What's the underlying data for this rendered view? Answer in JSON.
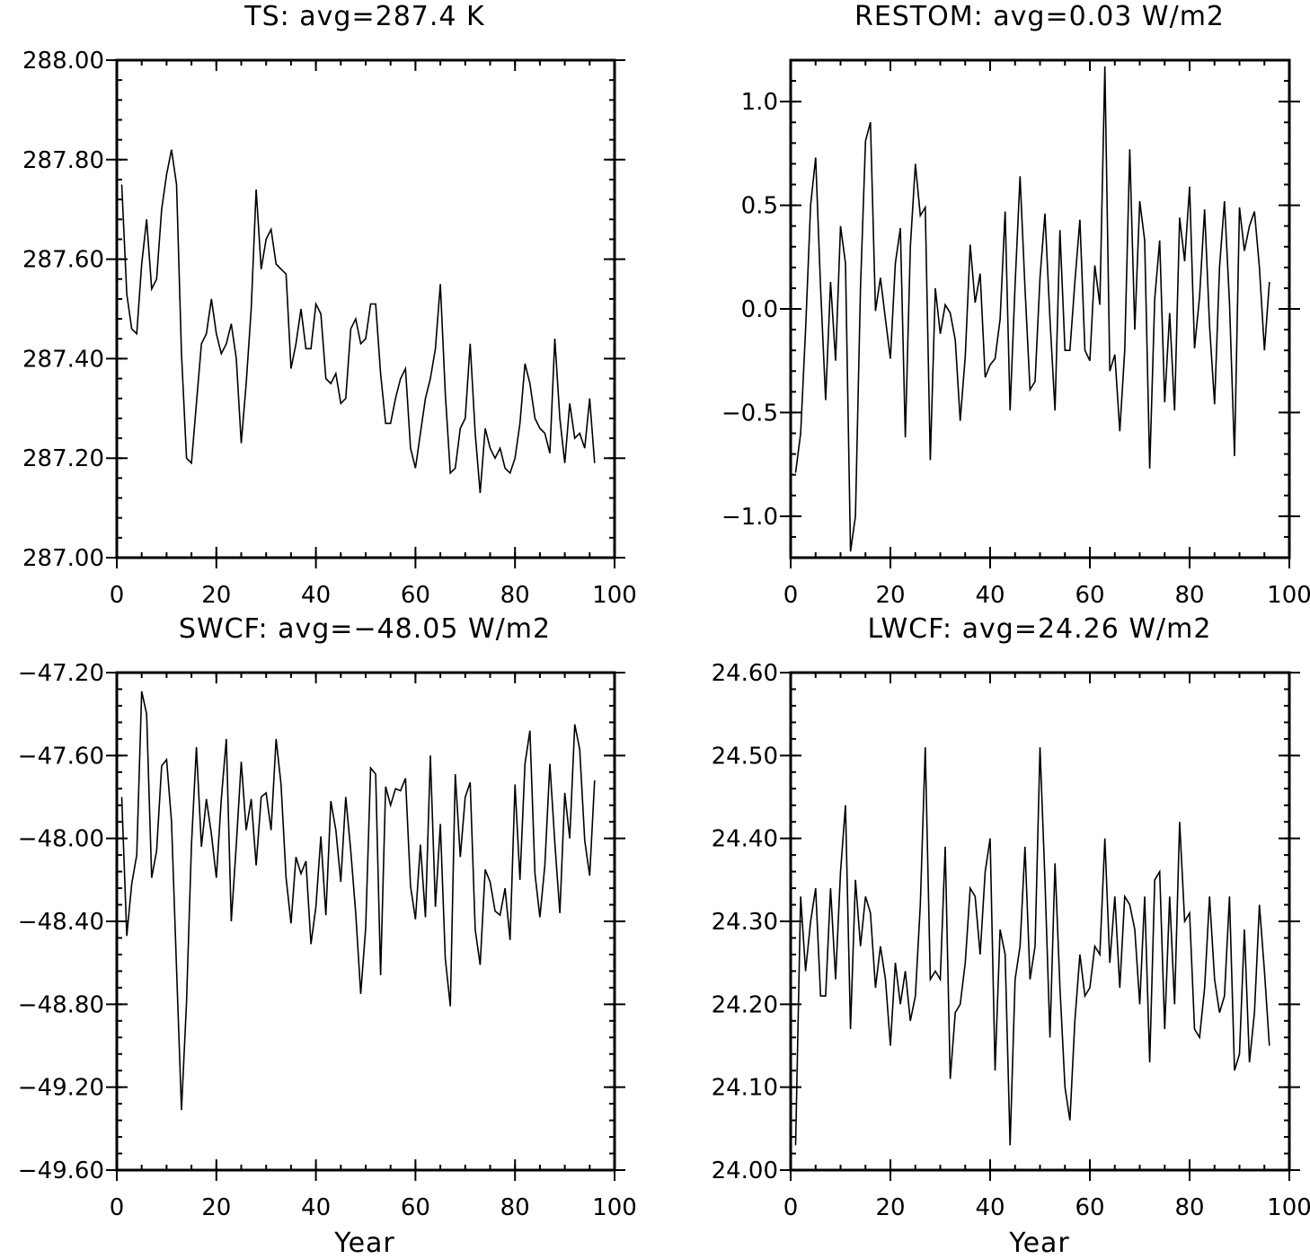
{
  "chart_data": [
    {
      "type": "line",
      "title": "TS: avg=287.4 K",
      "xlabel": "",
      "ylabel": "",
      "xlim": [
        0,
        100
      ],
      "ylim": [
        287.0,
        288.0
      ],
      "xticks": [
        0,
        20,
        40,
        60,
        80,
        100
      ],
      "xtick_labels": [
        "0",
        "20",
        "40",
        "60",
        "80",
        "100"
      ],
      "yticks": [
        287.0,
        287.2,
        287.4,
        287.6,
        287.8,
        288.0
      ],
      "ytick_labels": [
        "287.00",
        "287.20",
        "287.40",
        "287.60",
        "287.80",
        "288.00"
      ],
      "series": [
        {
          "x": [
            1,
            2,
            3,
            4,
            5,
            6,
            7,
            8,
            9,
            10,
            11,
            12,
            13,
            14,
            15,
            16,
            17,
            18,
            19,
            20,
            21,
            22,
            23,
            24,
            25,
            26,
            27,
            28,
            29,
            30,
            31,
            32,
            33,
            34,
            35,
            36,
            37,
            38,
            39,
            40,
            41,
            42,
            43,
            44,
            45,
            46,
            47,
            48,
            49,
            50,
            51,
            52,
            53,
            54,
            55,
            56,
            57,
            58,
            59,
            60,
            61,
            62,
            63,
            64,
            65,
            66,
            67,
            68,
            69,
            70,
            71,
            72,
            73,
            74,
            75,
            76,
            77,
            78,
            79,
            80,
            81,
            82,
            83,
            84,
            85,
            86,
            87,
            88,
            89,
            90,
            91,
            92,
            93,
            94,
            95,
            96
          ],
          "values": [
            287.75,
            287.53,
            287.46,
            287.45,
            287.59,
            287.68,
            287.54,
            287.56,
            287.7,
            287.77,
            287.82,
            287.75,
            287.41,
            287.2,
            287.19,
            287.31,
            287.43,
            287.45,
            287.52,
            287.45,
            287.41,
            287.43,
            287.47,
            287.4,
            287.23,
            287.35,
            287.5,
            287.74,
            287.58,
            287.64,
            287.66,
            287.59,
            287.58,
            287.57,
            287.38,
            287.43,
            287.5,
            287.42,
            287.42,
            287.51,
            287.49,
            287.36,
            287.35,
            287.37,
            287.31,
            287.32,
            287.46,
            287.48,
            287.43,
            287.44,
            287.51,
            287.51,
            287.37,
            287.27,
            287.27,
            287.32,
            287.36,
            287.38,
            287.22,
            287.18,
            287.25,
            287.32,
            287.36,
            287.42,
            287.55,
            287.33,
            287.17,
            287.18,
            287.26,
            287.28,
            287.43,
            287.25,
            287.13,
            287.26,
            287.22,
            287.2,
            287.22,
            287.18,
            287.17,
            287.2,
            287.27,
            287.39,
            287.35,
            287.28,
            287.26,
            287.25,
            287.21,
            287.44,
            287.28,
            287.19,
            287.31,
            287.24,
            287.25,
            287.22,
            287.32,
            287.19
          ]
        }
      ]
    },
    {
      "type": "line",
      "title": "RESTOM: avg=0.03 W/m2",
      "xlabel": "",
      "ylabel": "",
      "xlim": [
        0,
        100
      ],
      "ylim": [
        -1.2,
        1.2
      ],
      "xticks": [
        0,
        20,
        40,
        60,
        80,
        100
      ],
      "xtick_labels": [
        "0",
        "20",
        "40",
        "60",
        "80",
        "100"
      ],
      "yticks": [
        -1.0,
        -0.5,
        0.0,
        0.5,
        1.0
      ],
      "ytick_labels": [
        "−1.0",
        "−0.5",
        "0.0",
        "0.5",
        "1.0"
      ],
      "series": [
        {
          "x": [
            1,
            2,
            3,
            4,
            5,
            6,
            7,
            8,
            9,
            10,
            11,
            12,
            13,
            14,
            15,
            16,
            17,
            18,
            19,
            20,
            21,
            22,
            23,
            24,
            25,
            26,
            27,
            28,
            29,
            30,
            31,
            32,
            33,
            34,
            35,
            36,
            37,
            38,
            39,
            40,
            41,
            42,
            43,
            44,
            45,
            46,
            47,
            48,
            49,
            50,
            51,
            52,
            53,
            54,
            55,
            56,
            57,
            58,
            59,
            60,
            61,
            62,
            63,
            64,
            65,
            66,
            67,
            68,
            69,
            70,
            71,
            72,
            73,
            74,
            75,
            76,
            77,
            78,
            79,
            80,
            81,
            82,
            83,
            84,
            85,
            86,
            87,
            88,
            89,
            90,
            91,
            92,
            93,
            94,
            95,
            96
          ],
          "values": [
            -0.79,
            -0.6,
            -0.1,
            0.5,
            0.73,
            0.1,
            -0.44,
            0.13,
            -0.25,
            0.4,
            0.22,
            -1.17,
            -1.0,
            0.1,
            0.81,
            0.9,
            -0.01,
            0.15,
            -0.05,
            -0.24,
            0.22,
            0.39,
            -0.62,
            0.3,
            0.7,
            0.45,
            0.49,
            -0.73,
            0.1,
            -0.12,
            0.02,
            -0.02,
            -0.15,
            -0.54,
            -0.23,
            0.31,
            0.03,
            0.17,
            -0.33,
            -0.27,
            -0.24,
            -0.05,
            0.47,
            -0.49,
            0.12,
            0.64,
            0.1,
            -0.39,
            -0.35,
            0.15,
            0.46,
            -0.05,
            -0.49,
            0.38,
            -0.2,
            -0.2,
            0.13,
            0.43,
            -0.2,
            -0.25,
            0.21,
            0.02,
            1.17,
            -0.3,
            -0.22,
            -0.59,
            -0.2,
            0.77,
            -0.1,
            0.52,
            0.33,
            -0.77,
            0.05,
            0.33,
            -0.45,
            -0.02,
            -0.49,
            0.44,
            0.23,
            0.59,
            -0.19,
            0.06,
            0.48,
            -0.08,
            -0.46,
            0.2,
            0.52,
            0.03,
            -0.71,
            0.49,
            0.28,
            0.4,
            0.47,
            0.2,
            -0.2,
            0.13
          ]
        }
      ]
    },
    {
      "type": "line",
      "title": "SWCF: avg=−48.05 W/m2",
      "xlabel": "Year",
      "ylabel": "",
      "xlim": [
        0,
        100
      ],
      "ylim": [
        -49.6,
        -47.2
      ],
      "xticks": [
        0,
        20,
        40,
        60,
        80,
        100
      ],
      "xtick_labels": [
        "0",
        "20",
        "40",
        "60",
        "80",
        "100"
      ],
      "yticks": [
        -49.6,
        -49.2,
        -48.8,
        -48.4,
        -48.0,
        -47.6,
        -47.2
      ],
      "ytick_labels": [
        "−49.60",
        "−49.20",
        "−48.80",
        "−48.40",
        "−48.00",
        "−47.60",
        "−47.20"
      ],
      "series": [
        {
          "x": [
            1,
            2,
            3,
            4,
            5,
            6,
            7,
            8,
            9,
            10,
            11,
            12,
            13,
            14,
            15,
            16,
            17,
            18,
            19,
            20,
            21,
            22,
            23,
            24,
            25,
            26,
            27,
            28,
            29,
            30,
            31,
            32,
            33,
            34,
            35,
            36,
            37,
            38,
            39,
            40,
            41,
            42,
            43,
            44,
            45,
            46,
            47,
            48,
            49,
            50,
            51,
            52,
            53,
            54,
            55,
            56,
            57,
            58,
            59,
            60,
            61,
            62,
            63,
            64,
            65,
            66,
            67,
            68,
            69,
            70,
            71,
            72,
            73,
            74,
            75,
            76,
            77,
            78,
            79,
            80,
            81,
            82,
            83,
            84,
            85,
            86,
            87,
            88,
            89,
            90,
            91,
            92,
            93,
            94,
            95,
            96
          ],
          "values": [
            -47.8,
            -48.47,
            -48.22,
            -48.08,
            -47.29,
            -47.4,
            -48.19,
            -48.06,
            -47.65,
            -47.62,
            -47.92,
            -48.63,
            -49.31,
            -48.79,
            -48.03,
            -47.56,
            -48.04,
            -47.81,
            -47.98,
            -48.19,
            -47.81,
            -47.52,
            -48.4,
            -48.03,
            -47.63,
            -47.96,
            -47.81,
            -48.13,
            -47.8,
            -47.78,
            -47.96,
            -47.52,
            -47.74,
            -48.19,
            -48.41,
            -48.09,
            -48.17,
            -48.11,
            -48.51,
            -48.33,
            -47.99,
            -48.37,
            -47.82,
            -47.96,
            -48.21,
            -47.8,
            -48.06,
            -48.36,
            -48.75,
            -48.43,
            -47.66,
            -47.69,
            -48.66,
            -47.75,
            -47.84,
            -47.76,
            -47.77,
            -47.71,
            -48.23,
            -48.39,
            -48.03,
            -48.38,
            -47.6,
            -48.33,
            -47.93,
            -48.58,
            -48.81,
            -47.69,
            -48.09,
            -47.8,
            -47.73,
            -48.44,
            -48.61,
            -48.15,
            -48.21,
            -48.35,
            -48.37,
            -48.24,
            -48.49,
            -47.74,
            -48.2,
            -47.64,
            -47.48,
            -48.17,
            -48.38,
            -48.13,
            -47.64,
            -48.02,
            -48.36,
            -47.78,
            -48.0,
            -47.45,
            -47.57,
            -48.01,
            -48.18,
            -47.72
          ]
        }
      ]
    },
    {
      "type": "line",
      "title": "LWCF: avg=24.26 W/m2",
      "xlabel": "Year",
      "ylabel": "",
      "xlim": [
        0,
        100
      ],
      "ylim": [
        24.0,
        24.6
      ],
      "xticks": [
        0,
        20,
        40,
        60,
        80,
        100
      ],
      "xtick_labels": [
        "0",
        "20",
        "40",
        "60",
        "80",
        "100"
      ],
      "yticks": [
        24.0,
        24.1,
        24.2,
        24.3,
        24.4,
        24.5,
        24.6
      ],
      "ytick_labels": [
        "24.00",
        "24.10",
        "24.20",
        "24.30",
        "24.40",
        "24.50",
        "24.60"
      ],
      "series": [
        {
          "x": [
            1,
            2,
            3,
            4,
            5,
            6,
            7,
            8,
            9,
            10,
            11,
            12,
            13,
            14,
            15,
            16,
            17,
            18,
            19,
            20,
            21,
            22,
            23,
            24,
            25,
            26,
            27,
            28,
            29,
            30,
            31,
            32,
            33,
            34,
            35,
            36,
            37,
            38,
            39,
            40,
            41,
            42,
            43,
            44,
            45,
            46,
            47,
            48,
            49,
            50,
            51,
            52,
            53,
            54,
            55,
            56,
            57,
            58,
            59,
            60,
            61,
            62,
            63,
            64,
            65,
            66,
            67,
            68,
            69,
            70,
            71,
            72,
            73,
            74,
            75,
            76,
            77,
            78,
            79,
            80,
            81,
            82,
            83,
            84,
            85,
            86,
            87,
            88,
            89,
            90,
            91,
            92,
            93,
            94,
            95,
            96
          ],
          "values": [
            24.03,
            24.33,
            24.24,
            24.3,
            24.34,
            24.21,
            24.21,
            24.34,
            24.23,
            24.36,
            24.44,
            24.17,
            24.35,
            24.27,
            24.33,
            24.31,
            24.22,
            24.27,
            24.23,
            24.15,
            24.25,
            24.2,
            24.24,
            24.18,
            24.21,
            24.32,
            24.51,
            24.23,
            24.24,
            24.23,
            24.39,
            24.11,
            24.19,
            24.2,
            24.25,
            24.34,
            24.33,
            24.26,
            24.36,
            24.4,
            24.12,
            24.29,
            24.26,
            24.03,
            24.23,
            24.27,
            24.39,
            24.23,
            24.27,
            24.51,
            24.35,
            24.16,
            24.37,
            24.22,
            24.1,
            24.06,
            24.18,
            24.26,
            24.21,
            24.22,
            24.27,
            24.26,
            24.4,
            24.25,
            24.33,
            24.22,
            24.33,
            24.32,
            24.29,
            24.2,
            24.33,
            24.13,
            24.35,
            24.36,
            24.17,
            24.33,
            24.2,
            24.42,
            24.3,
            24.31,
            24.17,
            24.16,
            24.22,
            24.33,
            24.23,
            24.19,
            24.21,
            24.33,
            24.12,
            24.14,
            24.29,
            24.13,
            24.19,
            24.32,
            24.24,
            24.15
          ]
        }
      ]
    }
  ]
}
